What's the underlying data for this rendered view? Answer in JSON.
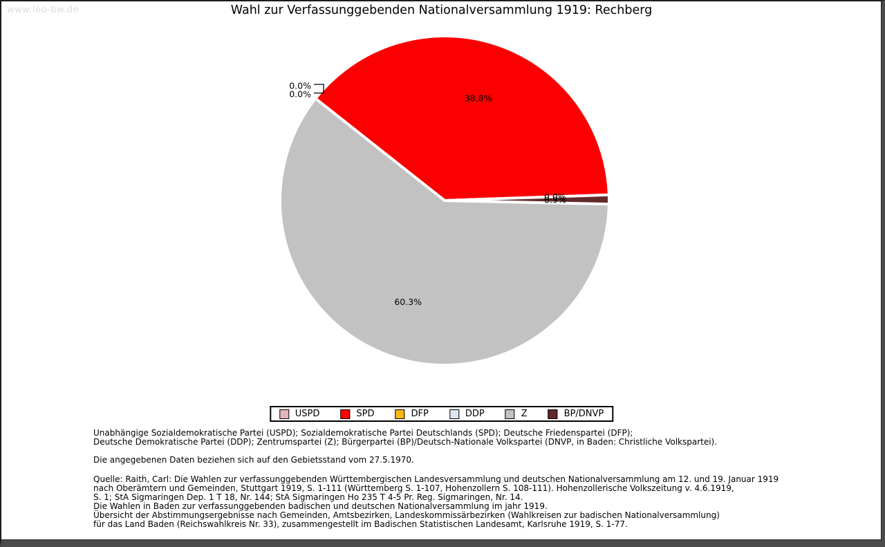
{
  "page": {
    "watermark": "www.leo-bw.de",
    "title": "Wahl zur Verfassunggebenden Nationalversammlung 1919: Rechberg"
  },
  "chart_data": {
    "type": "pie",
    "title": "Wahl zur Verfassunggebenden Nationalversammlung 1919: Rechberg",
    "direction": "counterclockwise",
    "start_angle_deg_clockwise_from_top": 88,
    "legend_position": "bottom",
    "slice_border_color": "#ffffff",
    "slices": [
      {
        "name": "USPD",
        "value": 0.0,
        "label": "0.0%",
        "color": "#e3b6ba"
      },
      {
        "name": "SPD",
        "value": 38.8,
        "label": "38.8%",
        "color": "#fb0000"
      },
      {
        "name": "DFP",
        "value": 0.0,
        "label": "0.0%",
        "color": "#ffb612",
        "callout": true
      },
      {
        "name": "DDP",
        "value": 0.0,
        "label": "0.0%",
        "color": "#dce5f0",
        "callout": true
      },
      {
        "name": "Z",
        "value": 60.3,
        "label": "60.3%",
        "color": "#c2c2c2"
      },
      {
        "name": "BP/DNVP",
        "value": 0.9,
        "label": "0.9%",
        "color": "#642828"
      }
    ]
  },
  "footnotes": {
    "parties_lines": [
      "Unabhängige Sozialdemokratische Partei (USPD); Sozialdemokratische Partei Deutschlands (SPD); Deutsche Friedenspartei (DFP);",
      "Deutsche Demokratische Partei (DDP); Zentrumspartei (Z); Bürgerpartei (BP)/Deutsch-Nationale Volkspartei (DNVP, in Baden: Christliche Volkspartei)."
    ],
    "basis": "Die angegebenen Daten beziehen sich auf den Gebietsstand vom 27.5.1970.",
    "source_lines": [
      "Quelle: Raith, Carl: Die Wahlen zur verfassunggebenden Württembergischen Landesversammlung und deutschen Nationalversammlung am 12. und 19. Januar 1919",
      "nach Oberämtern und Gemeinden, Stuttgart 1919, S. 1-111 (Württemberg S. 1-107, Hohenzollern S. 108-111). Hohenzollerische Volkszeitung v. 4.6.1919,",
      "S. 1; StA Sigmaringen Dep. 1 T 18, Nr. 144; StA Sigmaringen Ho 235 T 4-5 Pr. Reg. Sigmaringen, Nr. 14.",
      "Die Wahlen in Baden zur verfassunggebenden badischen und deutschen Nationalversammlung im jahr 1919.",
      "Übersicht der Abstimmungsergebnisse nach Gemeinden, Amtsbezirken, Landeskommissärbezirken (Wahlkreisen zur badischen Nationalversammlung)",
      "für das Land Baden (Reichswahlkreis Nr. 33), zusammengestellt im Badischen Statistischen Landesamt, Karlsruhe 1919, S. 1-77."
    ]
  }
}
